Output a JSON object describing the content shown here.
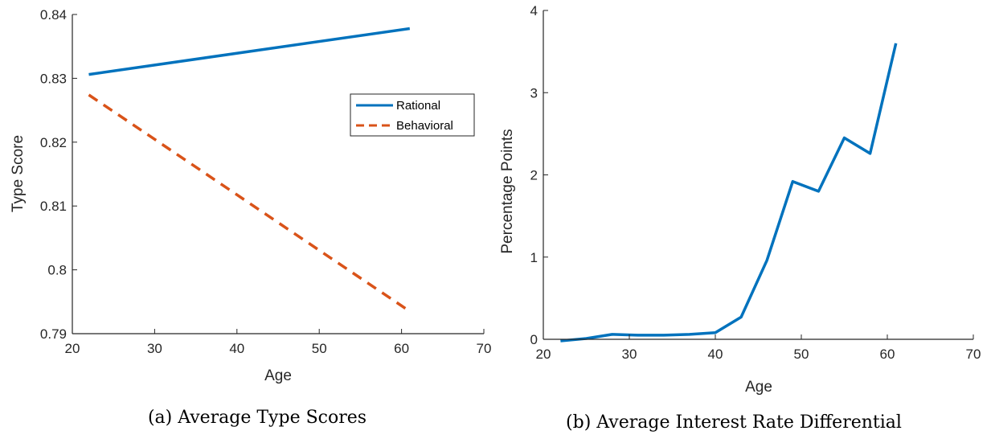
{
  "colors": {
    "rational": "#0072BD",
    "behavioral": "#D95319",
    "axis": "#262626"
  },
  "chart_data": [
    {
      "type": "line",
      "caption": "(a) Average Type Scores",
      "xlabel": "Age",
      "ylabel": "Type Score",
      "xlim": [
        20,
        70
      ],
      "ylim": [
        0.79,
        0.84
      ],
      "xticks": [
        20,
        30,
        40,
        50,
        60,
        70
      ],
      "yticks": [
        0.79,
        0.8,
        0.81,
        0.82,
        0.83,
        0.84
      ],
      "ytick_labels": [
        "0.79",
        "0.8",
        "0.81",
        "0.82",
        "0.83",
        "0.84"
      ],
      "grid": false,
      "legend_position": "top-right",
      "series": [
        {
          "name": "Rational",
          "style": "solid",
          "x": [
            22,
            61
          ],
          "y": [
            0.8306,
            0.8378
          ]
        },
        {
          "name": "Behavioral",
          "style": "dashed",
          "x": [
            22,
            61
          ],
          "y": [
            0.8274,
            0.7935
          ]
        }
      ]
    },
    {
      "type": "line",
      "caption": "(b) Average Interest Rate Differential",
      "xlabel": "Age",
      "ylabel": "Percentage Points",
      "xlim": [
        20,
        70
      ],
      "ylim": [
        0,
        4
      ],
      "xticks": [
        20,
        30,
        40,
        50,
        60,
        70
      ],
      "yticks": [
        0,
        1,
        2,
        3,
        4
      ],
      "ytick_labels": [
        "0",
        "1",
        "2",
        "3",
        "4"
      ],
      "grid": false,
      "series": [
        {
          "style": "solid",
          "x": [
            22,
            25,
            28,
            31,
            34,
            37,
            40,
            43,
            46,
            49,
            52,
            55,
            58,
            61
          ],
          "y": [
            -0.02,
            0.01,
            0.06,
            0.05,
            0.05,
            0.06,
            0.08,
            0.27,
            0.96,
            1.92,
            1.8,
            2.45,
            2.26,
            3.6
          ]
        }
      ]
    }
  ]
}
